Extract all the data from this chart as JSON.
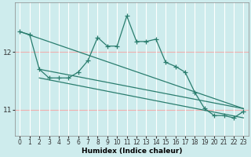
{
  "xlabel": "Humidex (Indice chaleur)",
  "x": [
    0,
    1,
    2,
    3,
    4,
    5,
    6,
    7,
    8,
    9,
    10,
    11,
    12,
    13,
    14,
    15,
    16,
    17,
    18,
    19,
    20,
    21,
    22,
    23
  ],
  "main_y": [
    12.35,
    12.3,
    11.7,
    11.55,
    11.55,
    11.55,
    11.65,
    11.85,
    12.25,
    12.1,
    12.1,
    12.62,
    12.18,
    12.18,
    12.22,
    11.82,
    11.75,
    11.65,
    11.3,
    11.02,
    10.9,
    10.9,
    10.86,
    10.97
  ],
  "line1_start_x": 0,
  "line1_start_y": 12.35,
  "line1_end_x": 23,
  "line1_end_y": 11.02,
  "line2_start_x": 2,
  "line2_start_y": 11.7,
  "line2_end_x": 23,
  "line2_end_y": 11.02,
  "line3_start_x": 2,
  "line3_start_y": 11.55,
  "line3_end_x": 23,
  "line3_end_y": 10.86,
  "ylim_min": 10.55,
  "ylim_max": 12.85,
  "yticks": [
    11,
    12
  ],
  "xticks": [
    0,
    1,
    2,
    3,
    4,
    5,
    6,
    7,
    8,
    9,
    10,
    11,
    12,
    13,
    14,
    15,
    16,
    17,
    18,
    19,
    20,
    21,
    22,
    23
  ],
  "bg_color": "#ceeced",
  "grid_h_color": "#f0b0b0",
  "grid_v_color": "#ffffff",
  "line_color": "#2a7d6e",
  "tick_fontsize": 5.5,
  "xlabel_fontsize": 6.5,
  "linewidth": 0.9,
  "marker": "+",
  "markersize": 4,
  "markeredgewidth": 0.9
}
